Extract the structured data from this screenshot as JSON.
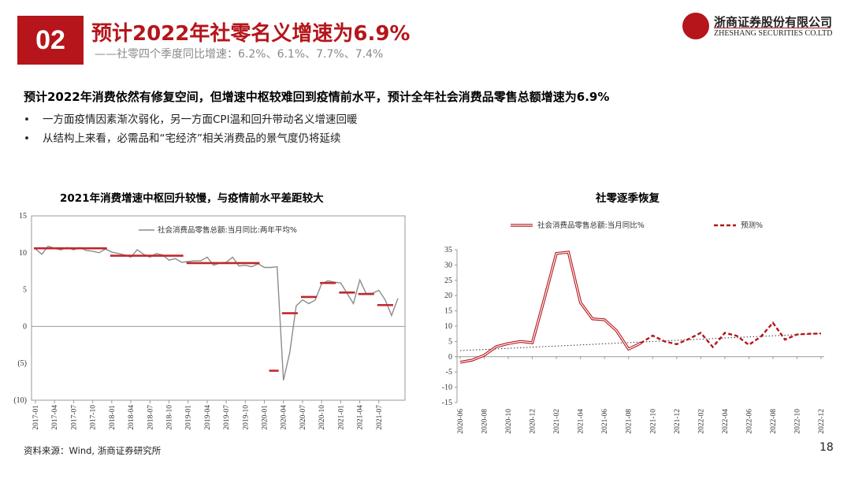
{
  "header": {
    "badge": "02",
    "title": "预计2022年社零名义增速为6.9%",
    "subtitle": "——社零四个季度同比增速：6.2%、6.1%、7.7%、7.4%",
    "logo_cn": "浙商证券股份有限公司",
    "logo_en": "ZHESHANG SECURITIES CO.LTD"
  },
  "body": {
    "headline": "预计2022年消费依然有修复空间，但增速中枢较难回到疫情前水平，预计全年社会消费品零售总额增速为6.9%",
    "bullets": [
      "一方面疫情因素渐次弱化，另一方面CPI温和回升带动名义增速回暖",
      "从结构上来看，必需品和“宅经济”相关消费品的景气度仍将延续"
    ],
    "bullet_mark": "•"
  },
  "footer": {
    "source": "资料来源：Wind, 浙商证券研究所",
    "page": "18"
  },
  "chart_data": [
    {
      "type": "line",
      "title": "2021年消费增速中枢回升较慢，与疫情前水平差距较大",
      "ylim": [
        -10,
        15
      ],
      "y_ticks": [
        "15",
        "10",
        "5",
        "0",
        "(5)",
        "(10)"
      ],
      "x_labels": [
        "2017-01",
        "2017-04",
        "2017-07",
        "2017-10",
        "2018-01",
        "2018-04",
        "2018-07",
        "2018-10",
        "2019-01",
        "2019-04",
        "2019-07",
        "2019-10",
        "2020-01",
        "2020-04",
        "2020-07",
        "2020-10",
        "2021-01",
        "2021-04",
        "2021-07"
      ],
      "grid": false,
      "legend_position": "top",
      "series": [
        {
          "name": "社会消费品零售总额:当月同比:两年平均%",
          "color": "#8c8c8c",
          "values": [
            10.5,
            9.8,
            10.9,
            10.6,
            10.4,
            10.7,
            10.4,
            10.7,
            10.3,
            10.2,
            10.0,
            10.5,
            10.1,
            9.9,
            9.7,
            9.4,
            10.4,
            9.8,
            9.4,
            9.9,
            9.7,
            9.0,
            9.2,
            8.7,
            8.8,
            8.9,
            8.9,
            9.4,
            8.3,
            8.6,
            8.7,
            9.4,
            8.2,
            8.3,
            8.1,
            8.5,
            8.0,
            8.0,
            8.1,
            -7.3,
            -3.5,
            2.8,
            3.6,
            3.1,
            3.6,
            5.8,
            6.2,
            6.0,
            5.9,
            4.5,
            3.1,
            6.3,
            4.5,
            4.5,
            4.9,
            3.6,
            1.5,
            3.8
          ]
        }
      ],
      "segments": {
        "color": "#c0282d",
        "items": [
          {
            "from": "2017-01",
            "to": "2017-12",
            "value": 10.6
          },
          {
            "from": "2018-01",
            "to": "2018-12",
            "value": 9.6
          },
          {
            "from": "2019-01",
            "to": "2019-12",
            "value": 8.6
          },
          {
            "from": "2020-02",
            "to": "2020-03",
            "value": -6.0
          },
          {
            "from": "2020-04",
            "to": "2020-06",
            "value": 1.8
          },
          {
            "from": "2020-07",
            "to": "2020-09",
            "value": 4.0
          },
          {
            "from": "2020-10",
            "to": "2020-12",
            "value": 5.9
          },
          {
            "from": "2021-01",
            "to": "2021-03",
            "value": 4.6
          },
          {
            "from": "2021-04",
            "to": "2021-06",
            "value": 4.4
          },
          {
            "from": "2021-07",
            "to": "2021-09",
            "value": 2.9
          }
        ]
      }
    },
    {
      "type": "line",
      "title": "社零逐季恢复",
      "ylim": [
        -15,
        35
      ],
      "y_ticks": [
        "35",
        "30",
        "25",
        "20",
        "15",
        "10",
        "5",
        "0",
        "-5",
        "-10",
        "-15"
      ],
      "x_labels": [
        "2020-06",
        "2020-08",
        "2020-10",
        "2020-12",
        "2021-02",
        "2021-04",
        "2021-06",
        "2021-08",
        "2021-10",
        "2021-12",
        "2022-02",
        "2022-04",
        "2022-06",
        "2022-08",
        "2022-10",
        "2022-12"
      ],
      "grid": false,
      "legend_position": "top",
      "series": [
        {
          "name": "社会消费品零售总额:当月同比%",
          "color": "#b5151b",
          "style": "double",
          "x": [
            "2020-06",
            "2020-07",
            "2020-08",
            "2020-09",
            "2020-10",
            "2020-11",
            "2020-12",
            "2021-01",
            "2021-02",
            "2021-03",
            "2021-04",
            "2021-05",
            "2021-06",
            "2021-07",
            "2021-08",
            "2021-09"
          ],
          "values": [
            -1.8,
            -1.1,
            0.5,
            3.3,
            4.3,
            5.0,
            4.6,
            19.0,
            33.8,
            34.2,
            17.7,
            12.4,
            12.1,
            8.5,
            2.5,
            4.4
          ]
        },
        {
          "name": "预测%",
          "color": "#b5151b",
          "style": "dashed",
          "x": [
            "2021-09",
            "2021-10",
            "2021-11",
            "2021-12",
            "2022-01",
            "2022-02",
            "2022-03",
            "2022-04",
            "2022-05",
            "2022-06",
            "2022-07",
            "2022-08",
            "2022-09",
            "2022-10",
            "2022-11",
            "2022-12"
          ],
          "values": [
            4.4,
            6.9,
            5.0,
            4.1,
            5.8,
            7.8,
            3.2,
            7.8,
            6.8,
            3.9,
            6.6,
            11.1,
            5.6,
            7.3,
            7.5,
            7.6
          ]
        }
      ],
      "trendline": {
        "color": "#333333",
        "style": "dotted",
        "from": 2.0,
        "to": 7.6
      }
    }
  ]
}
